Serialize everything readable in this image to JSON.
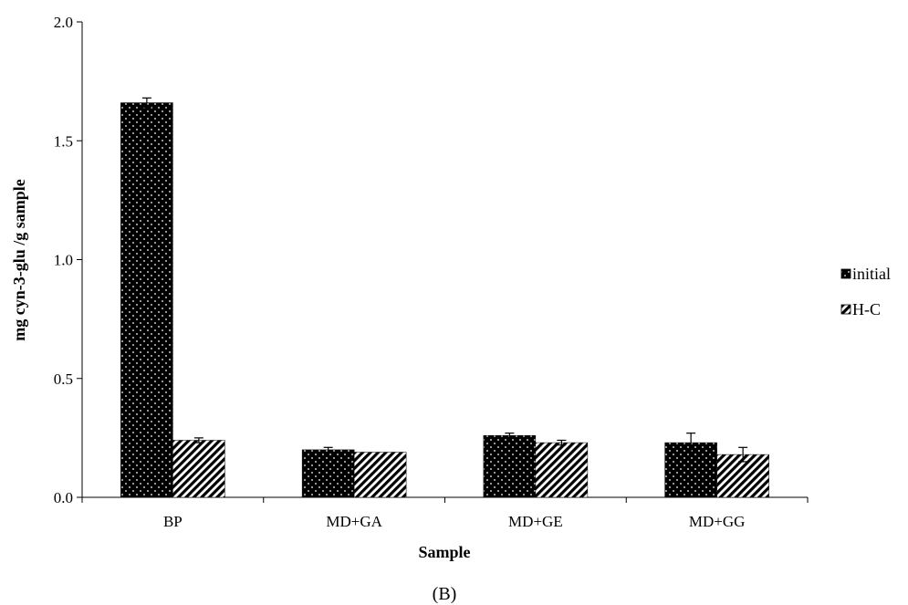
{
  "figure": {
    "caption": "(B)"
  },
  "chart_data": {
    "type": "bar",
    "xlabel": "Sample",
    "ylabel": "mg cyn-3-glu /g sample",
    "ylim": [
      0,
      2.0
    ],
    "yticks": [
      "0.0",
      "0.5",
      "1.0",
      "1.5",
      "2.0"
    ],
    "ytick_values": [
      0,
      0.5,
      1.0,
      1.5,
      2.0
    ],
    "categories": [
      "BP",
      "MD+GA",
      "MD+GE",
      "MD+GG"
    ],
    "series": [
      {
        "name": "initial",
        "pattern": "dotted",
        "values": [
          1.66,
          0.2,
          0.26,
          0.23
        ],
        "errors": [
          0.02,
          0.01,
          0.01,
          0.04
        ]
      },
      {
        "name": "H-C",
        "pattern": "hatched",
        "values": [
          0.24,
          0.19,
          0.23,
          0.18
        ],
        "errors": [
          0.01,
          0.0,
          0.01,
          0.03
        ]
      }
    ],
    "legend_position": "right",
    "grid": false
  }
}
